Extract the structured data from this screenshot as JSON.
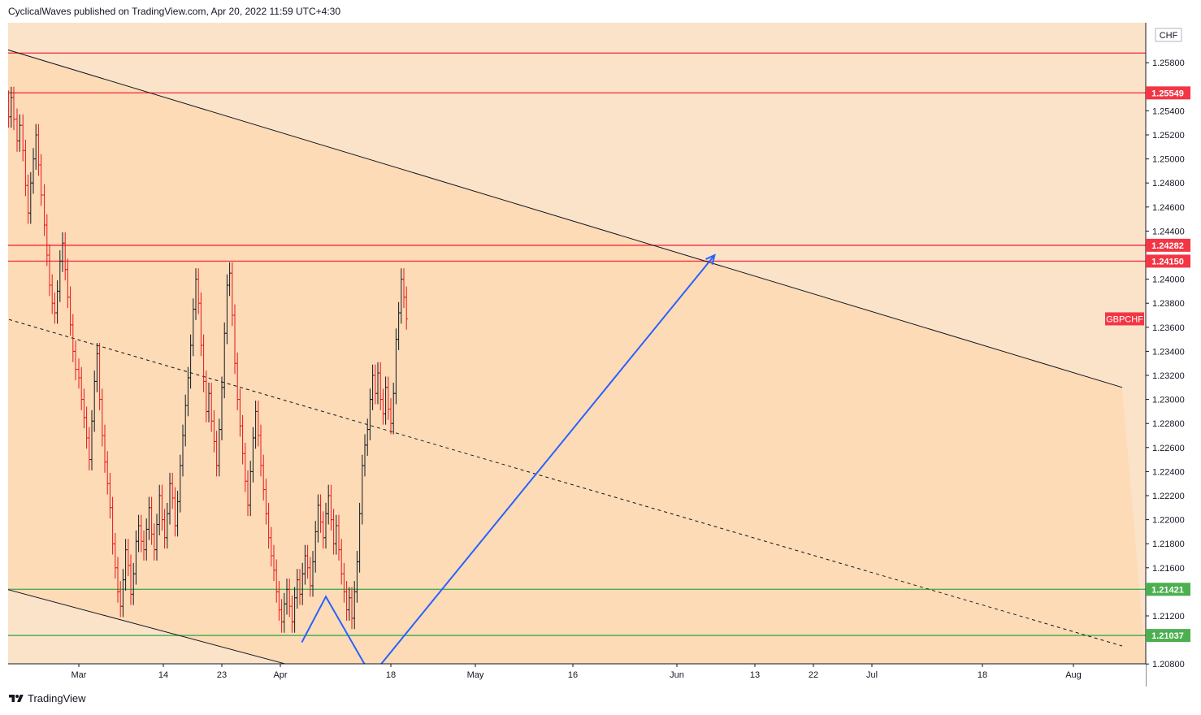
{
  "header": {
    "published_by": "CyclicalWaves published on TradingView.com, Apr 20, 2022 11:59 UTC+4:30"
  },
  "footer": {
    "brand": "TradingView"
  },
  "colors": {
    "background_outer": "#fbe3c9",
    "background_channel": "#fcdbb6",
    "candle_up": "#131722",
    "candle_down": "#e8141c",
    "resistance_line": "#f23645",
    "support_line": "#4caf50",
    "projection": "#2962ff",
    "channel_line": "#131722"
  },
  "chart_data": {
    "type": "candlestick",
    "symbol": "GBPCHF",
    "currency": "CHF",
    "x_axis": {
      "range_days": [
        0,
        224
      ],
      "ticks": [
        {
          "label": "Mar",
          "day": 0
        },
        {
          "label": "14",
          "day": 13
        },
        {
          "label": "23",
          "day": 22
        },
        {
          "label": "Apr",
          "day": 31
        },
        {
          "label": "18",
          "day": 48
        },
        {
          "label": "May",
          "day": 61
        },
        {
          "label": "16",
          "day": 76
        },
        {
          "label": "Jun",
          "day": 92
        },
        {
          "label": "13",
          "day": 104
        },
        {
          "label": "22",
          "day": 113
        },
        {
          "label": "Jul",
          "day": 122
        },
        {
          "label": "18",
          "day": 139
        },
        {
          "label": "Aug",
          "day": 153
        }
      ]
    },
    "y_axis": {
      "min": 1.207,
      "max": 1.262,
      "ticks": [
        "1.25800",
        "1.25400",
        "1.25200",
        "1.25000",
        "1.24800",
        "1.24600",
        "1.24400",
        "1.24000",
        "1.23800",
        "1.23600",
        "1.23400",
        "1.23200",
        "1.23000",
        "1.22800",
        "1.22600",
        "1.22400",
        "1.22200",
        "1.22000",
        "1.21800",
        "1.21600",
        "1.21200",
        "1.20800"
      ]
    },
    "price_badges": [
      {
        "value": "1.25549",
        "kind": "resistance"
      },
      {
        "value": "1.24282",
        "kind": "resistance"
      },
      {
        "value": "1.24150",
        "kind": "resistance"
      },
      {
        "value": "1.21421",
        "kind": "support"
      },
      {
        "value": "1.21037",
        "kind": "support"
      }
    ],
    "symbol_badge_price": 1.2367,
    "horizontal_levels": {
      "resistance": [
        1.2588,
        1.25549,
        1.24282,
        1.2415
      ],
      "support": [
        1.21421,
        1.21037
      ]
    },
    "candle_anchor_prices": [
      {
        "day": -11.7,
        "price": 1.2525
      },
      {
        "day": -11.3,
        "price": 1.2548
      },
      {
        "day": -10.8,
        "price": 1.2535
      },
      {
        "day": -10.4,
        "price": 1.2551
      },
      {
        "day": -10.0,
        "price": 1.2533
      },
      {
        "day": -9.5,
        "price": 1.2515
      },
      {
        "day": -9.1,
        "price": 1.2528
      },
      {
        "day": -8.6,
        "price": 1.2507
      },
      {
        "day": -8.2,
        "price": 1.2478
      },
      {
        "day": -7.8,
        "price": 1.2455
      },
      {
        "day": -7.4,
        "price": 1.248
      },
      {
        "day": -7.0,
        "price": 1.25
      },
      {
        "day": -6.6,
        "price": 1.252
      },
      {
        "day": -6.2,
        "price": 1.2495
      },
      {
        "day": -5.8,
        "price": 1.247
      },
      {
        "day": -5.3,
        "price": 1.2445
      },
      {
        "day": -4.9,
        "price": 1.242
      },
      {
        "day": -4.5,
        "price": 1.2395
      },
      {
        "day": -4.1,
        "price": 1.238
      },
      {
        "day": -3.7,
        "price": 1.2372
      },
      {
        "day": -3.3,
        "price": 1.239
      },
      {
        "day": -2.9,
        "price": 1.2415
      },
      {
        "day": -2.5,
        "price": 1.243
      },
      {
        "day": -2.1,
        "price": 1.2408
      },
      {
        "day": -1.7,
        "price": 1.2385
      },
      {
        "day": -1.3,
        "price": 1.2362
      },
      {
        "day": -0.9,
        "price": 1.234
      },
      {
        "day": -0.5,
        "price": 1.2325
      },
      {
        "day": 0.0,
        "price": 1.2318
      },
      {
        "day": 0.4,
        "price": 1.23
      },
      {
        "day": 0.8,
        "price": 1.2285
      },
      {
        "day": 1.2,
        "price": 1.2268
      },
      {
        "day": 1.6,
        "price": 1.225
      },
      {
        "day": 2.0,
        "price": 1.2282
      },
      {
        "day": 2.4,
        "price": 1.2315
      },
      {
        "day": 2.8,
        "price": 1.2338
      },
      {
        "day": 3.2,
        "price": 1.23
      },
      {
        "day": 3.6,
        "price": 1.227
      },
      {
        "day": 4.0,
        "price": 1.2248
      },
      {
        "day": 4.4,
        "price": 1.223
      },
      {
        "day": 4.8,
        "price": 1.221
      },
      {
        "day": 5.2,
        "price": 1.218
      },
      {
        "day": 5.6,
        "price": 1.216
      },
      {
        "day": 6.0,
        "price": 1.214
      },
      {
        "day": 6.4,
        "price": 1.2128
      },
      {
        "day": 6.8,
        "price": 1.215
      },
      {
        "day": 7.2,
        "price": 1.2175
      },
      {
        "day": 7.6,
        "price": 1.2162
      },
      {
        "day": 8.0,
        "price": 1.2138
      },
      {
        "day": 8.4,
        "price": 1.2155
      },
      {
        "day": 8.8,
        "price": 1.2182
      },
      {
        "day": 9.2,
        "price": 1.2195
      },
      {
        "day": 9.6,
        "price": 1.2182
      },
      {
        "day": 10.0,
        "price": 1.2175
      },
      {
        "day": 10.4,
        "price": 1.2192
      },
      {
        "day": 10.8,
        "price": 1.221
      },
      {
        "day": 11.2,
        "price": 1.2188
      },
      {
        "day": 11.6,
        "price": 1.2175
      },
      {
        "day": 12.0,
        "price": 1.2196
      },
      {
        "day": 12.4,
        "price": 1.222
      },
      {
        "day": 12.8,
        "price": 1.22
      },
      {
        "day": 13.2,
        "price": 1.2185
      },
      {
        "day": 13.6,
        "price": 1.2205
      },
      {
        "day": 14.0,
        "price": 1.223
      },
      {
        "day": 14.4,
        "price": 1.2218
      },
      {
        "day": 14.8,
        "price": 1.2195
      },
      {
        "day": 15.2,
        "price": 1.2215
      },
      {
        "day": 15.6,
        "price": 1.2245
      },
      {
        "day": 16.0,
        "price": 1.227
      },
      {
        "day": 16.4,
        "price": 1.2295
      },
      {
        "day": 16.8,
        "price": 1.2318
      },
      {
        "day": 17.2,
        "price": 1.2345
      },
      {
        "day": 17.6,
        "price": 1.2375
      },
      {
        "day": 18.0,
        "price": 1.24
      },
      {
        "day": 18.4,
        "price": 1.238
      },
      {
        "day": 18.8,
        "price": 1.2345
      },
      {
        "day": 19.2,
        "price": 1.2315
      },
      {
        "day": 19.6,
        "price": 1.229
      },
      {
        "day": 20.0,
        "price": 1.2305
      },
      {
        "day": 20.4,
        "price": 1.2282
      },
      {
        "day": 20.8,
        "price": 1.2265
      },
      {
        "day": 21.2,
        "price": 1.2245
      },
      {
        "day": 21.6,
        "price": 1.2275
      },
      {
        "day": 22.0,
        "price": 1.231
      },
      {
        "day": 22.4,
        "price": 1.2355
      },
      {
        "day": 22.8,
        "price": 1.2395
      },
      {
        "day": 23.2,
        "price": 1.2405
      },
      {
        "day": 23.6,
        "price": 1.237
      },
      {
        "day": 24.0,
        "price": 1.233
      },
      {
        "day": 24.4,
        "price": 1.23
      },
      {
        "day": 24.8,
        "price": 1.2278
      },
      {
        "day": 25.2,
        "price": 1.2255
      },
      {
        "day": 25.6,
        "price": 1.2232
      },
      {
        "day": 26.0,
        "price": 1.2212
      },
      {
        "day": 26.4,
        "price": 1.224
      },
      {
        "day": 26.8,
        "price": 1.2268
      },
      {
        "day": 27.2,
        "price": 1.229
      },
      {
        "day": 27.6,
        "price": 1.227
      },
      {
        "day": 28.0,
        "price": 1.2245
      },
      {
        "day": 28.4,
        "price": 1.2225
      },
      {
        "day": 28.8,
        "price": 1.2205
      },
      {
        "day": 29.2,
        "price": 1.2185
      },
      {
        "day": 29.6,
        "price": 1.217
      },
      {
        "day": 30.0,
        "price": 1.2158
      },
      {
        "day": 30.4,
        "price": 1.214
      },
      {
        "day": 30.8,
        "price": 1.2125
      },
      {
        "day": 31.2,
        "price": 1.2115
      },
      {
        "day": 31.6,
        "price": 1.213
      },
      {
        "day": 32.0,
        "price": 1.2142
      },
      {
        "day": 32.4,
        "price": 1.2128
      },
      {
        "day": 32.8,
        "price": 1.2115
      },
      {
        "day": 33.2,
        "price": 1.2135
      },
      {
        "day": 33.6,
        "price": 1.215
      },
      {
        "day": 34.0,
        "price": 1.2138
      },
      {
        "day": 34.4,
        "price": 1.2155
      },
      {
        "day": 34.8,
        "price": 1.217
      },
      {
        "day": 35.2,
        "price": 1.216
      },
      {
        "day": 35.6,
        "price": 1.2145
      },
      {
        "day": 36.0,
        "price": 1.2165
      },
      {
        "day": 36.4,
        "price": 1.219
      },
      {
        "day": 36.8,
        "price": 1.2212
      },
      {
        "day": 37.2,
        "price": 1.2198
      },
      {
        "day": 37.6,
        "price": 1.2185
      },
      {
        "day": 38.0,
        "price": 1.2205
      },
      {
        "day": 38.4,
        "price": 1.222
      },
      {
        "day": 38.8,
        "price": 1.22
      },
      {
        "day": 39.2,
        "price": 1.218
      },
      {
        "day": 39.6,
        "price": 1.2195
      },
      {
        "day": 40.0,
        "price": 1.2175
      },
      {
        "day": 40.4,
        "price": 1.2155
      },
      {
        "day": 40.8,
        "price": 1.214
      },
      {
        "day": 41.2,
        "price": 1.2125
      },
      {
        "day": 41.6,
        "price": 1.2135
      },
      {
        "day": 42.0,
        "price": 1.2118
      },
      {
        "day": 42.4,
        "price": 1.214
      },
      {
        "day": 42.8,
        "price": 1.2165
      },
      {
        "day": 43.2,
        "price": 1.2205
      },
      {
        "day": 43.6,
        "price": 1.2245
      },
      {
        "day": 44.0,
        "price": 1.2262
      },
      {
        "day": 44.4,
        "price": 1.2275
      },
      {
        "day": 44.8,
        "price": 1.23
      },
      {
        "day": 45.2,
        "price": 1.232
      },
      {
        "day": 45.6,
        "price": 1.2305
      },
      {
        "day": 46.0,
        "price": 1.2322
      },
      {
        "day": 46.4,
        "price": 1.23
      },
      {
        "day": 46.8,
        "price": 1.2288
      },
      {
        "day": 47.2,
        "price": 1.231
      },
      {
        "day": 47.6,
        "price": 1.2292
      },
      {
        "day": 48.0,
        "price": 1.228
      },
      {
        "day": 48.4,
        "price": 1.2305
      },
      {
        "day": 48.8,
        "price": 1.235
      },
      {
        "day": 49.2,
        "price": 1.2372
      },
      {
        "day": 49.6,
        "price": 1.24
      },
      {
        "day": 50.0,
        "price": 1.2385
      },
      {
        "day": 50.4,
        "price": 1.2367
      }
    ],
    "drawings": {
      "upper_channel_line": {
        "start": {
          "day": -11.7,
          "price": 1.2592
        },
        "end": {
          "day": 160.5,
          "price": 1.231
        }
      },
      "midline_dashed": {
        "start": {
          "day": -11.7,
          "price": 1.2368
        },
        "end": {
          "day": 160.5,
          "price": 1.2095
        }
      },
      "lower_channel_line": {
        "start": {
          "day": -11.7,
          "price": 1.2143
        },
        "end": {
          "day": 38.7,
          "price": 1.207
        }
      },
      "projection_path": [
        {
          "day": 34.3,
          "price": 1.2098
        },
        {
          "day": 38.0,
          "price": 1.2136
        },
        {
          "day": 45.0,
          "price": 1.207
        },
        {
          "day": 97.8,
          "price": 1.242
        }
      ]
    }
  }
}
